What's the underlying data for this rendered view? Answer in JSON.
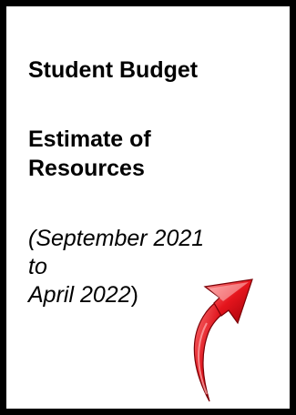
{
  "document": {
    "title": "Student Budget",
    "subtitle_line1": "Estimate of",
    "subtitle_line2": "Resources",
    "period_line1": "(September 2021",
    "period_line2": "to",
    "period_line3_open": "April 2022",
    "period_line3_close": ")"
  },
  "icons": {
    "arrow": "curved-up-right-arrow-icon"
  },
  "colors": {
    "arrow": "#d9121b",
    "border": "#000000"
  }
}
